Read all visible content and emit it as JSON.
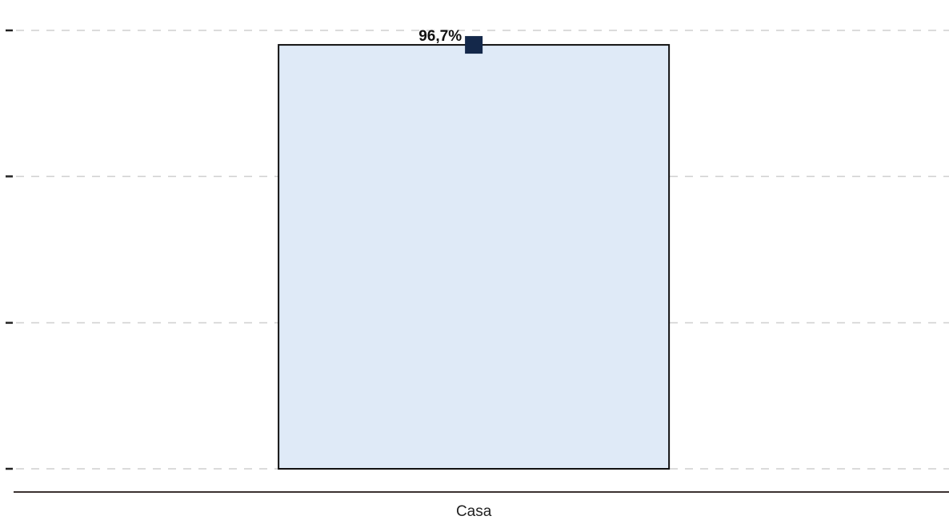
{
  "chart_data": {
    "type": "bar",
    "categories": [
      "Casa"
    ],
    "values": [
      96.7
    ],
    "data_labels": [
      "96,7%"
    ],
    "ylim": [
      0,
      100
    ],
    "y_ticks": [
      0,
      33.3,
      66.7,
      100
    ],
    "y_tick_labels_shown": false,
    "grid": true,
    "grid_style": "dashed",
    "legend": "none",
    "title": "",
    "xlabel": "",
    "ylabel": "",
    "colors": {
      "bar_fill": "#dfeaf7",
      "bar_border": "#111111",
      "marker": "#14284a",
      "grid": "#cfcfcf",
      "baseline": "#3b3230"
    },
    "marker_shape": "square"
  }
}
